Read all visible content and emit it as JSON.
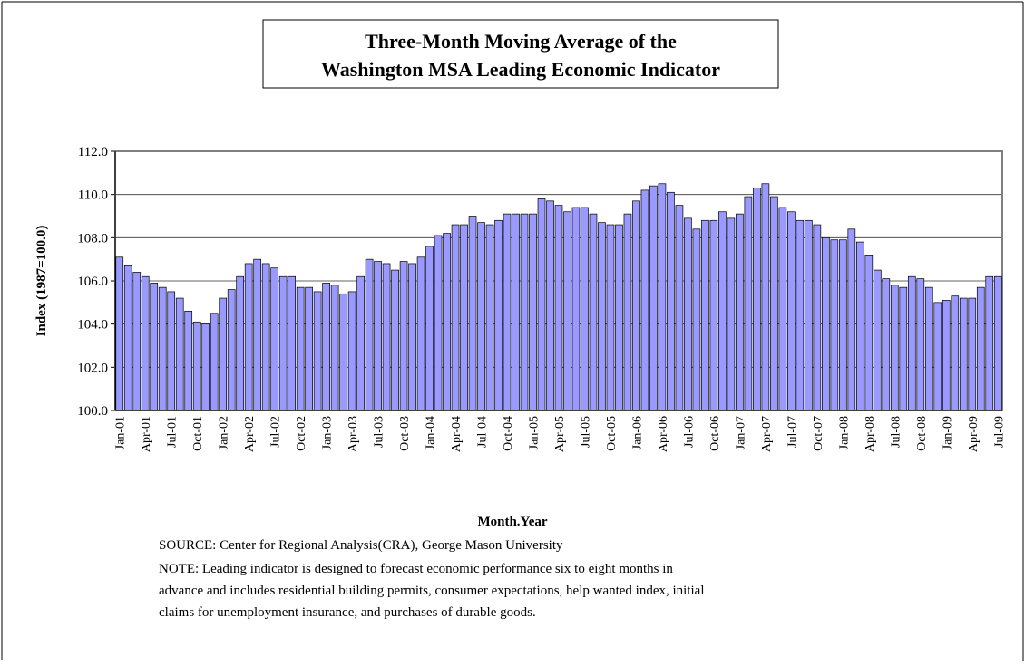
{
  "chart_data": {
    "type": "bar",
    "title": [
      "Three-Month Moving Average of the",
      "Washington MSA Leading Economic Indicator"
    ],
    "ylabel": "Index (1987=100.0)",
    "xlabel": "Month.Year",
    "notes": [
      "SOURCE:  Center for Regional Analysis(CRA), George Mason University",
      "NOTE:  Leading indicator is designed to forecast economic performance six to eight months in",
      "advance and includes residential building permits, consumer expectations, help wanted index, initial",
      "claims for unemployment insurance, and purchases of durable goods."
    ],
    "color": "#9999ff",
    "grid": true,
    "ylim": [
      100,
      112
    ],
    "yticks": [
      {
        "value": 100,
        "label": "100.0"
      },
      {
        "value": 102,
        "label": "102.0"
      },
      {
        "value": 104,
        "label": "104.0"
      },
      {
        "value": 106,
        "label": "106.0"
      },
      {
        "value": 108,
        "label": "108.0"
      },
      {
        "value": 110,
        "label": "110.0"
      },
      {
        "value": 112,
        "label": "112.0"
      }
    ],
    "categories": [
      "Jan-01",
      null,
      null,
      "Apr-01",
      null,
      null,
      "Jul-01",
      null,
      null,
      "Oct-01",
      null,
      null,
      "Jan-02",
      null,
      null,
      "Apr-02",
      null,
      null,
      "Jul-02",
      null,
      null,
      "Oct-02",
      null,
      null,
      "Jan-03",
      null,
      null,
      "Apr-03",
      null,
      null,
      "Jul-03",
      null,
      null,
      "Oct-03",
      null,
      null,
      "Jan-04",
      null,
      null,
      "Apr-04",
      null,
      null,
      "Jul-04",
      null,
      null,
      "Oct-04",
      null,
      null,
      "Jan-05",
      null,
      null,
      "Apr-05",
      null,
      null,
      "Jul-05",
      null,
      null,
      "Oct-05",
      null,
      null,
      "Jan-06",
      null,
      null,
      "Apr-06",
      null,
      null,
      "Jul-06",
      null,
      null,
      "Oct-06",
      null,
      null,
      "Jan-07",
      null,
      null,
      "Apr-07",
      null,
      null,
      "Jul-07",
      null,
      null,
      "Oct-07",
      null,
      null,
      "Jan-08",
      null,
      null,
      "Apr-08",
      null,
      null,
      "Jul-08",
      null,
      null,
      "Oct-08",
      null,
      null,
      "Jan-09",
      null,
      null,
      "Apr-09",
      null,
      null,
      "Jul-09"
    ],
    "values": [
      107.1,
      106.7,
      106.4,
      106.2,
      105.9,
      105.7,
      105.5,
      105.2,
      104.6,
      104.1,
      104.0,
      104.5,
      105.2,
      105.6,
      106.2,
      106.8,
      107.0,
      106.8,
      106.6,
      106.2,
      106.2,
      105.7,
      105.7,
      105.5,
      105.9,
      105.8,
      105.4,
      105.5,
      106.2,
      107.0,
      106.9,
      106.8,
      106.5,
      106.9,
      106.8,
      107.1,
      107.6,
      108.1,
      108.2,
      108.6,
      108.6,
      109.0,
      108.7,
      108.6,
      108.8,
      109.1,
      109.1,
      109.1,
      109.1,
      109.8,
      109.7,
      109.5,
      109.2,
      109.4,
      109.4,
      109.1,
      108.7,
      108.6,
      108.6,
      109.1,
      109.7,
      110.2,
      110.4,
      110.5,
      110.1,
      109.5,
      108.9,
      108.4,
      108.8,
      108.8,
      109.2,
      108.9,
      109.1,
      109.9,
      110.3,
      110.5,
      109.9,
      109.4,
      109.2,
      108.8,
      108.8,
      108.6,
      108.0,
      107.9,
      107.9,
      108.4,
      107.8,
      107.2,
      106.5,
      106.1,
      105.8,
      105.7,
      106.2,
      106.1,
      105.7,
      105.0,
      105.1,
      105.3,
      105.2,
      105.2,
      105.7,
      106.2,
      106.2
    ]
  }
}
